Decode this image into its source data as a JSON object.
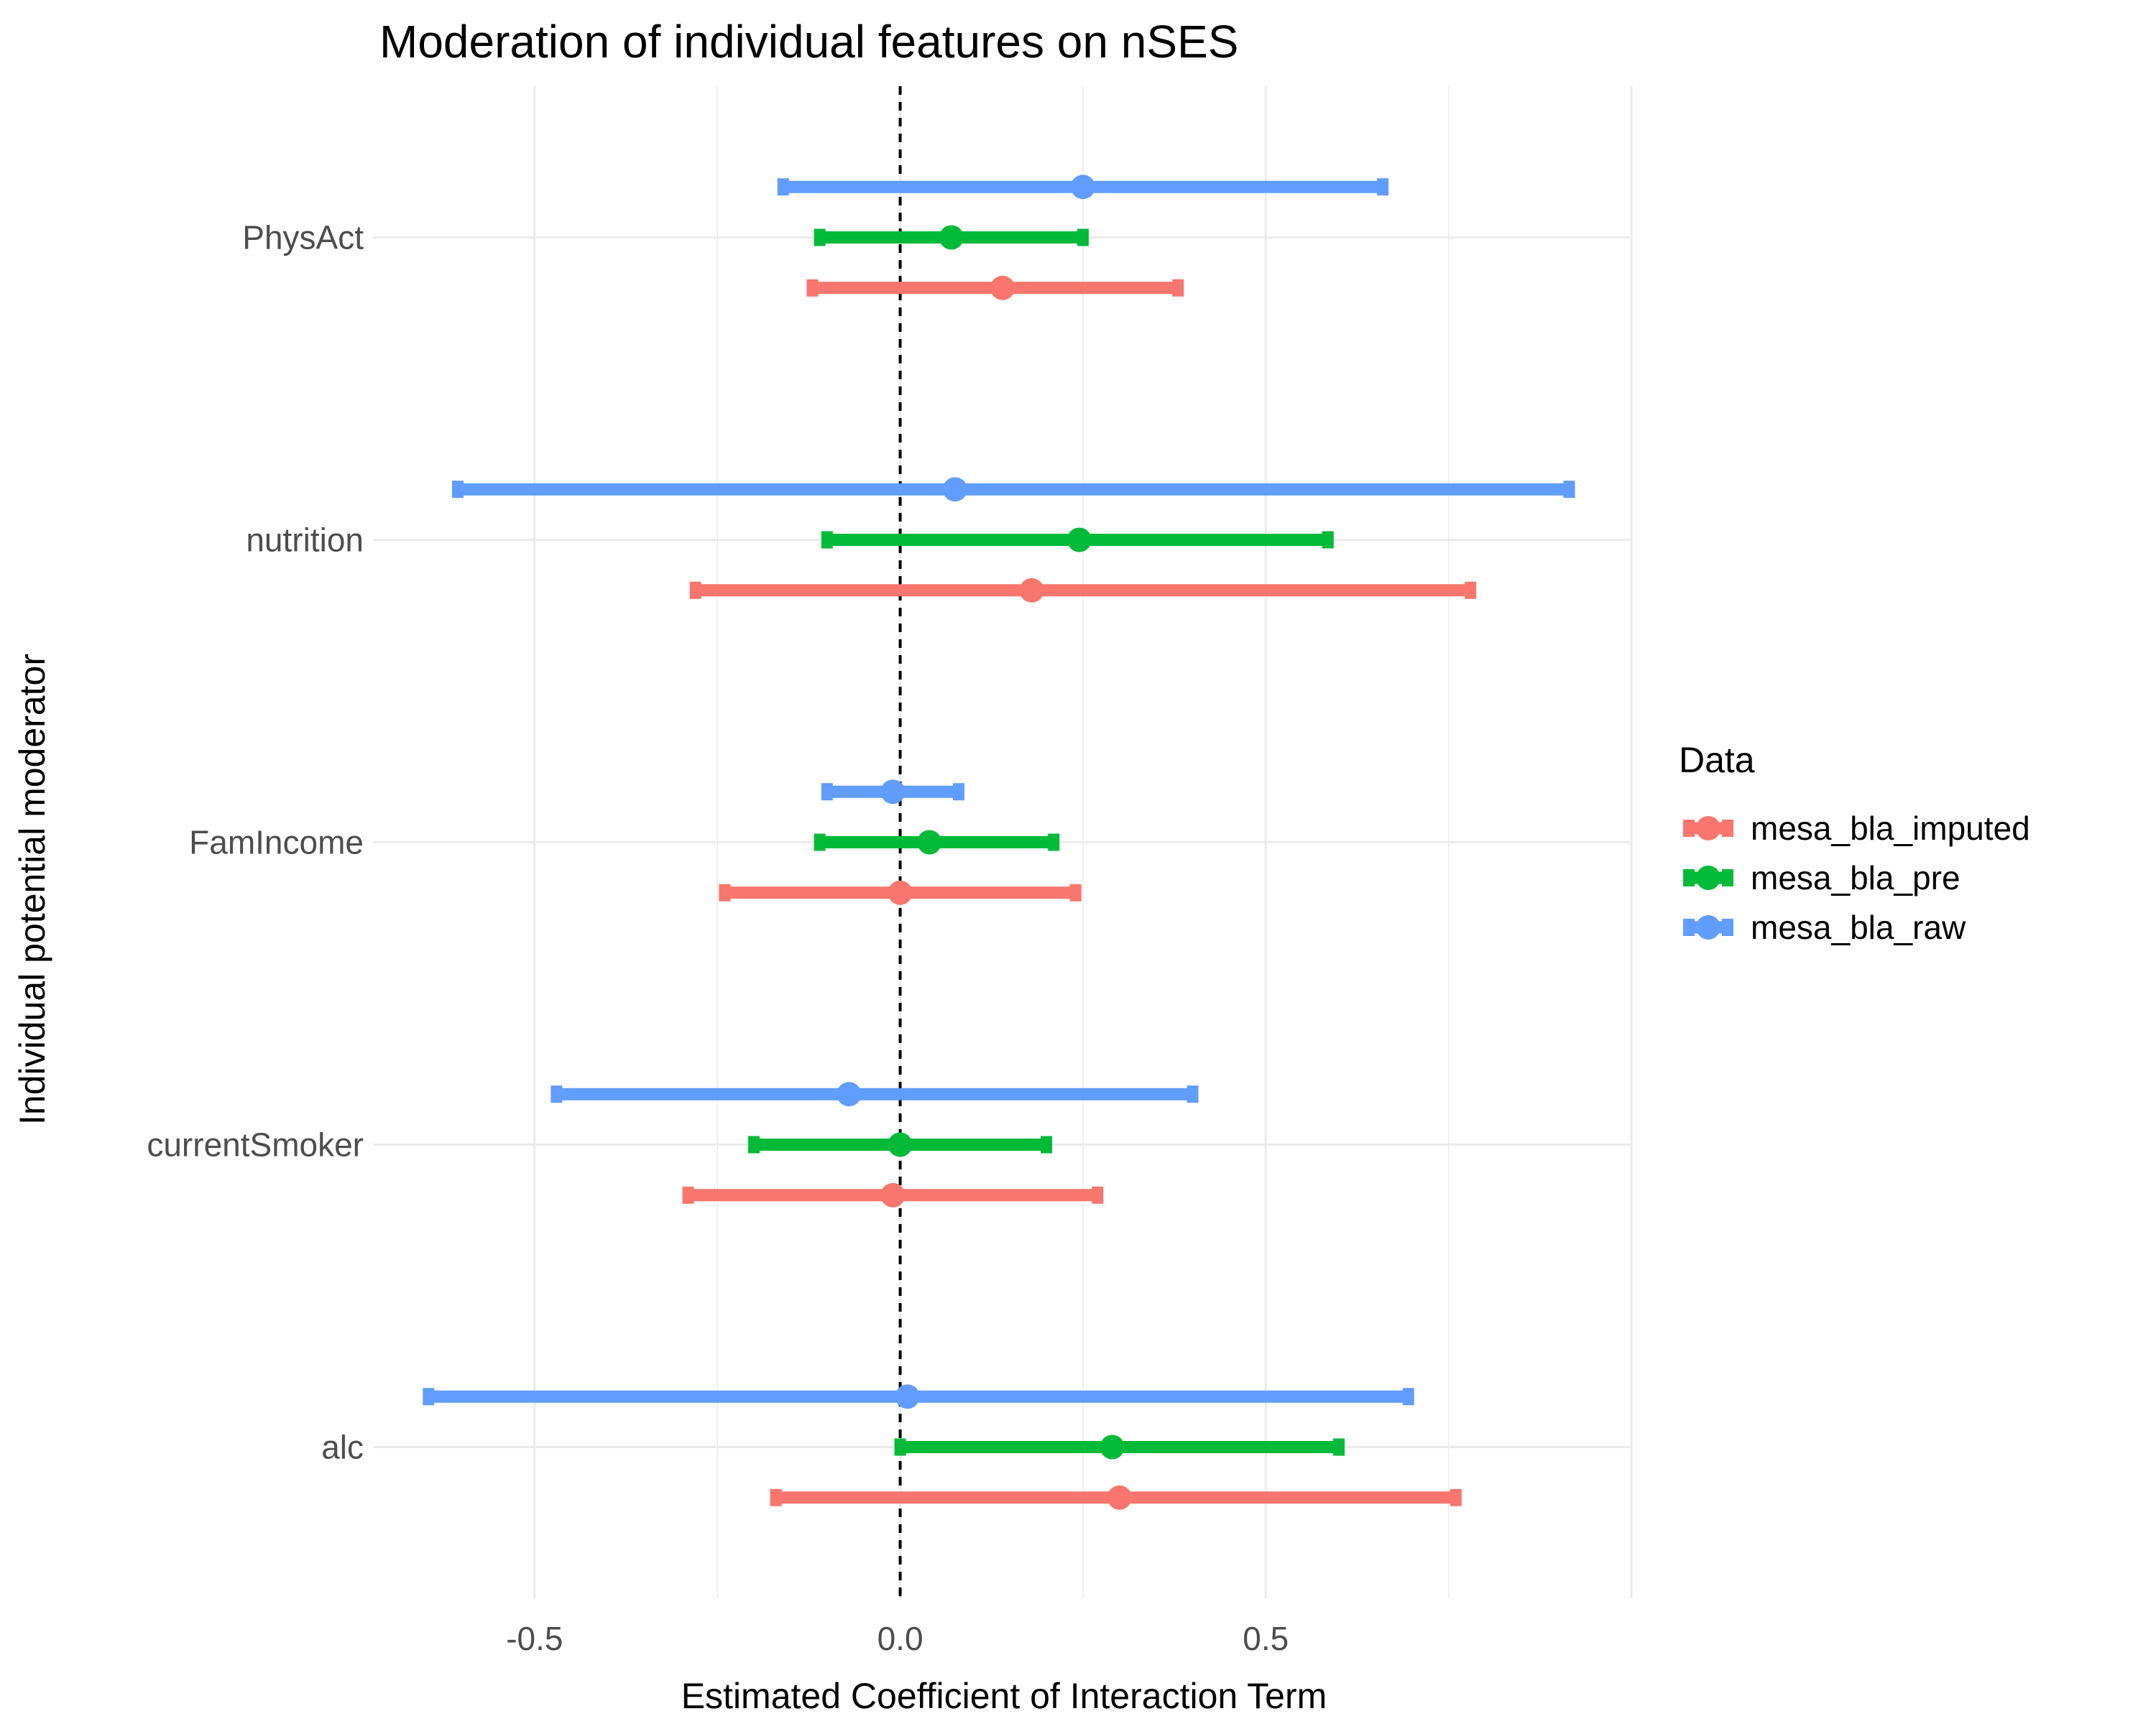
{
  "chart_data": {
    "type": "forest",
    "title": "Moderation of individual features on nSES",
    "xlabel": "Estimated Coefficient of Interaction Term",
    "ylabel": "Individual potential moderator",
    "xlim": [
      -0.72,
      1.0
    ],
    "x_ticks": [
      -0.5,
      0.0,
      0.5
    ],
    "x_tick_labels": [
      "-0.5",
      "0.0",
      "0.5"
    ],
    "reference_line": {
      "x": 0.0,
      "style": "dashed"
    },
    "grid": true,
    "categories": [
      "PhysAct",
      "nutrition",
      "FamIncome",
      "currentSmoker",
      "alc"
    ],
    "legend": {
      "title": "Data",
      "position": "right"
    },
    "series": [
      {
        "name": "mesa_bla_imputed",
        "color": "#F8766D",
        "points": [
          {
            "category": "PhysAct",
            "estimate": 0.14,
            "lower": -0.12,
            "upper": 0.38
          },
          {
            "category": "nutrition",
            "estimate": 0.18,
            "lower": -0.28,
            "upper": 0.78
          },
          {
            "category": "FamIncome",
            "estimate": 0.0,
            "lower": -0.24,
            "upper": 0.24
          },
          {
            "category": "currentSmoker",
            "estimate": -0.01,
            "lower": -0.29,
            "upper": 0.27
          },
          {
            "category": "alc",
            "estimate": 0.3,
            "lower": -0.17,
            "upper": 0.76
          }
        ]
      },
      {
        "name": "mesa_bla_pre",
        "color": "#00BA38",
        "points": [
          {
            "category": "PhysAct",
            "estimate": 0.07,
            "lower": -0.11,
            "upper": 0.25
          },
          {
            "category": "nutrition",
            "estimate": 0.245,
            "lower": -0.1,
            "upper": 0.585
          },
          {
            "category": "FamIncome",
            "estimate": 0.04,
            "lower": -0.11,
            "upper": 0.21
          },
          {
            "category": "currentSmoker",
            "estimate": 0.0,
            "lower": -0.2,
            "upper": 0.2
          },
          {
            "category": "alc",
            "estimate": 0.29,
            "lower": 0.0,
            "upper": 0.6
          }
        ]
      },
      {
        "name": "mesa_bla_raw",
        "color": "#619CFF",
        "points": [
          {
            "category": "PhysAct",
            "estimate": 0.25,
            "lower": -0.16,
            "upper": 0.66
          },
          {
            "category": "nutrition",
            "estimate": 0.075,
            "lower": -0.605,
            "upper": 0.915
          },
          {
            "category": "FamIncome",
            "estimate": -0.01,
            "lower": -0.1,
            "upper": 0.08
          },
          {
            "category": "currentSmoker",
            "estimate": -0.07,
            "lower": -0.47,
            "upper": 0.4
          },
          {
            "category": "alc",
            "estimate": 0.01,
            "lower": -0.645,
            "upper": 0.695
          }
        ]
      }
    ]
  }
}
